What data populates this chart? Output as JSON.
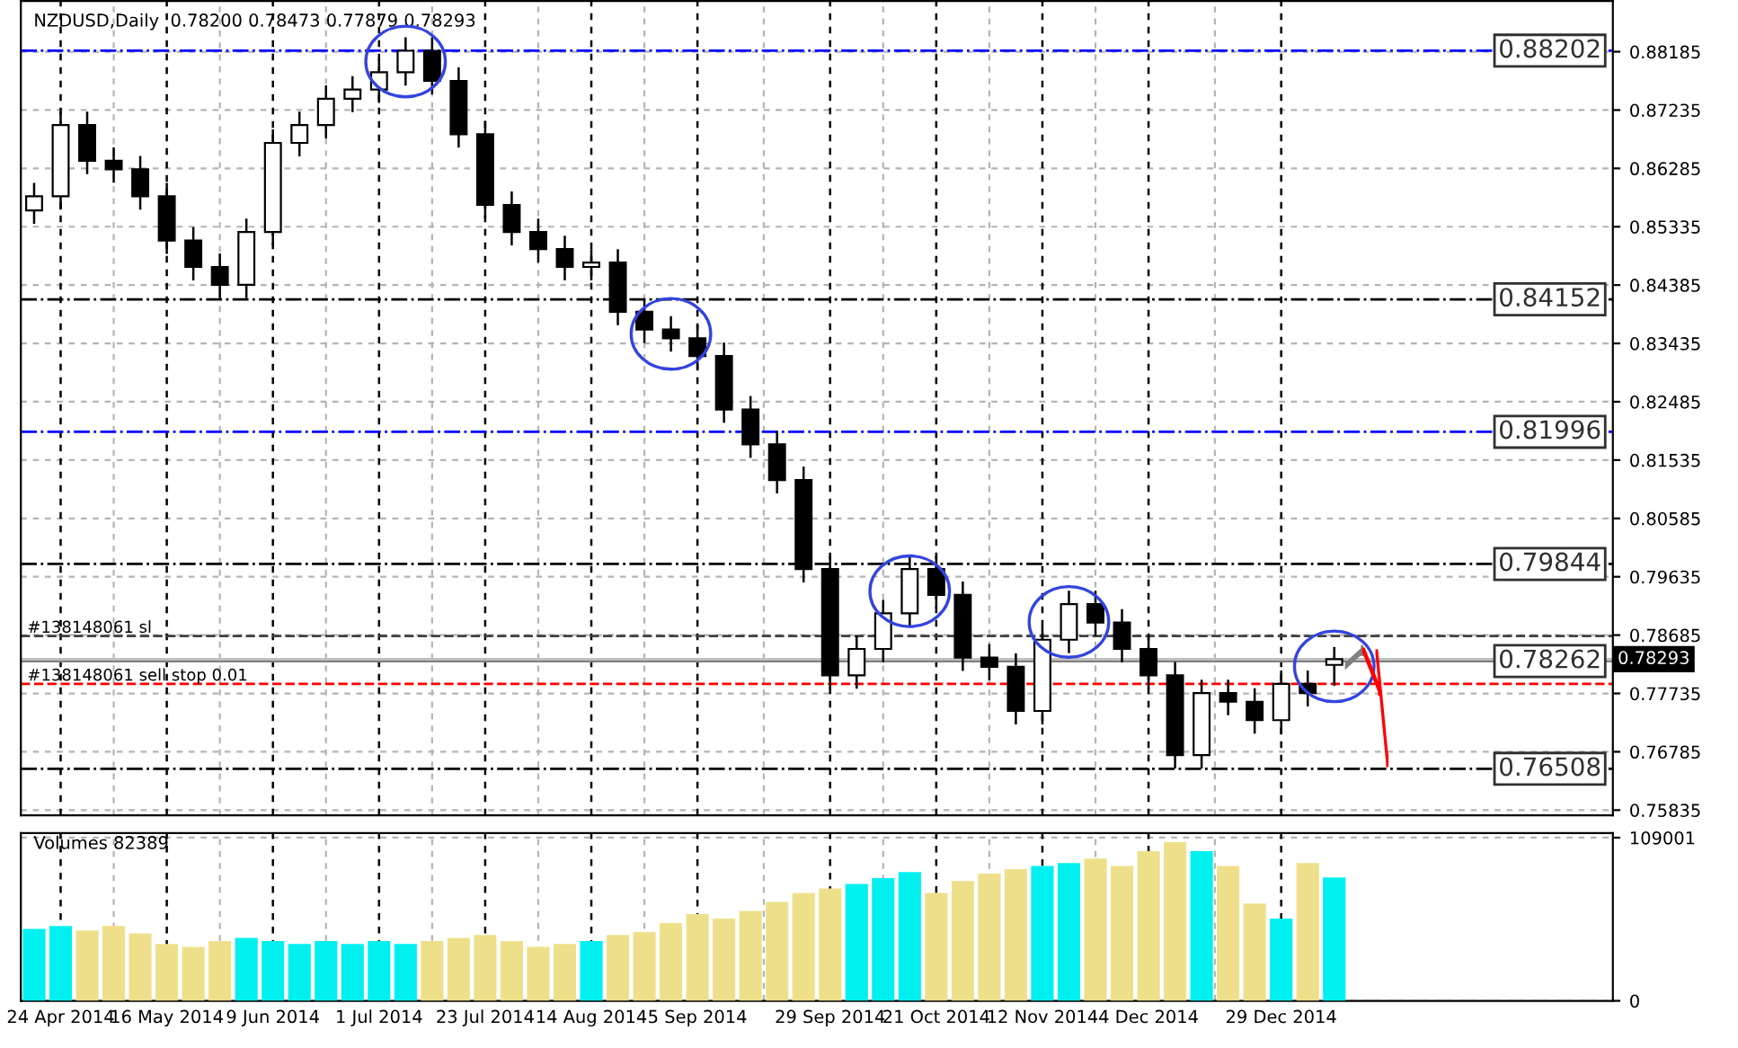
{
  "chart_data": [
    {
      "type": "candlestick",
      "title": "NZDUSD,Daily  0.78200 0.78473 0.77879 0.78293",
      "categories": [
        null,
        null,
        null,
        null,
        null,
        null,
        null,
        null,
        null,
        null,
        null,
        null,
        null,
        null,
        null,
        null,
        null,
        null,
        null,
        null,
        null,
        null,
        null,
        null,
        null,
        null,
        null,
        null,
        null,
        null,
        null,
        null,
        null,
        null,
        null,
        null,
        null,
        null,
        null,
        null,
        null,
        null,
        null,
        null,
        null,
        null,
        null,
        null,
        null,
        null,
        null,
        null,
        null,
        null,
        null,
        null,
        null,
        null,
        null,
        null
      ],
      "ohlc": [
        [
          0.856,
          0.8603,
          0.854,
          0.8583
        ],
        [
          0.8583,
          0.8719,
          0.8563,
          0.8699
        ],
        [
          0.8699,
          0.8719,
          0.8621,
          0.8641
        ],
        [
          0.8641,
          0.8661,
          0.8607,
          0.8627
        ],
        [
          0.8627,
          0.8647,
          0.8563,
          0.8583
        ],
        [
          0.8583,
          0.8603,
          0.8491,
          0.8511
        ],
        [
          0.8511,
          0.8531,
          0.8448,
          0.8468
        ],
        [
          0.8468,
          0.8488,
          0.8419,
          0.8439
        ],
        [
          0.8439,
          0.8545,
          0.8419,
          0.8525
        ],
        [
          0.8525,
          0.869,
          0.8505,
          0.867
        ],
        [
          0.867,
          0.8719,
          0.865,
          0.8699
        ],
        [
          0.8699,
          0.8762,
          0.8679,
          0.8742
        ],
        [
          0.8742,
          0.8777,
          0.8722,
          0.8757
        ],
        [
          0.8757,
          0.8805,
          0.8737,
          0.8785
        ],
        [
          0.8785,
          0.884,
          0.8765,
          0.882
        ],
        [
          0.882,
          0.884,
          0.8751,
          0.8771
        ],
        [
          0.8771,
          0.8791,
          0.8664,
          0.8684
        ],
        [
          0.8684,
          0.8704,
          0.8549,
          0.8569
        ],
        [
          0.8569,
          0.8589,
          0.8505,
          0.8525
        ],
        [
          0.8525,
          0.8545,
          0.8477,
          0.8497
        ],
        [
          0.8497,
          0.8517,
          0.8448,
          0.8468
        ],
        [
          0.8468,
          0.8495,
          0.8448,
          0.8475
        ],
        [
          0.8475,
          0.8495,
          0.8375,
          0.8395
        ],
        [
          0.8395,
          0.8415,
          0.8346,
          0.8366
        ],
        [
          0.8366,
          0.8386,
          0.8332,
          0.8352
        ],
        [
          0.8352,
          0.8372,
          0.8303,
          0.8323
        ],
        [
          0.8323,
          0.8343,
          0.8216,
          0.8236
        ],
        [
          0.8236,
          0.8256,
          0.8159,
          0.8179
        ],
        [
          0.8179,
          0.8199,
          0.8101,
          0.8121
        ],
        [
          0.8121,
          0.8141,
          0.7956,
          0.7976
        ],
        [
          0.7976,
          0.7996,
          0.7783,
          0.7803
        ],
        [
          0.7803,
          0.7866,
          0.7783,
          0.7846
        ],
        [
          0.7846,
          0.7924,
          0.7826,
          0.7904
        ],
        [
          0.7904,
          0.7996,
          0.7884,
          0.7976
        ],
        [
          0.7976,
          0.7996,
          0.7914,
          0.7934
        ],
        [
          0.7934,
          0.7954,
          0.7812,
          0.7832
        ],
        [
          0.7832,
          0.7852,
          0.7797,
          0.7817
        ],
        [
          0.7817,
          0.7837,
          0.7725,
          0.7745
        ],
        [
          0.7745,
          0.7881,
          0.7725,
          0.7861
        ],
        [
          0.7861,
          0.7939,
          0.7841,
          0.7919
        ],
        [
          0.7919,
          0.7939,
          0.7869,
          0.7889
        ],
        [
          0.7889,
          0.7909,
          0.7826,
          0.7846
        ],
        [
          0.7846,
          0.7866,
          0.7783,
          0.7803
        ],
        [
          0.7803,
          0.7823,
          0.7653,
          0.7673
        ],
        [
          0.7673,
          0.7794,
          0.7653,
          0.7774
        ],
        [
          0.7774,
          0.7794,
          0.774,
          0.776
        ],
        [
          0.776,
          0.778,
          0.771,
          0.773
        ],
        [
          0.773,
          0.7809,
          0.771,
          0.7789
        ],
        [
          0.7789,
          0.7809,
          0.7754,
          0.7774
        ],
        [
          0.782,
          0.78473,
          0.77879,
          0.78293
        ],
        null,
        null,
        null,
        null,
        null,
        null,
        null,
        null,
        null,
        null
      ],
      "ylim": [
        0.7575,
        0.8901
      ],
      "yticks": [
        0.88185,
        0.87235,
        0.86285,
        0.85335,
        0.84385,
        0.83435,
        0.82485,
        0.81535,
        0.80585,
        0.79635,
        0.78685,
        0.77735,
        0.76785,
        0.75835
      ],
      "grid": true,
      "ref_lines": [
        {
          "axis": "y",
          "value": 0.88202,
          "label": "0.88202",
          "color": "#0000ff",
          "line_style": "dashdot"
        },
        {
          "axis": "y",
          "value": 0.84152,
          "label": "0.84152",
          "color": "#000000",
          "line_style": "dashdot"
        },
        {
          "axis": "y",
          "value": 0.81996,
          "label": "0.81996",
          "color": "#0000ff",
          "line_style": "dashdot"
        },
        {
          "axis": "y",
          "value": 0.79844,
          "label": "0.79844",
          "color": "#000000",
          "line_style": "dashdot"
        },
        {
          "axis": "y",
          "value": 0.78262,
          "label": "0.78262",
          "color": "#808080",
          "line_style": "solid"
        },
        {
          "axis": "y",
          "value": 0.76508,
          "label": "0.76508",
          "color": "#000000",
          "line_style": "dashdot"
        },
        {
          "axis": "y",
          "value": 0.7867,
          "label": "#138148061 sl",
          "color": "#404040",
          "line_style": "dashed"
        },
        {
          "axis": "y",
          "value": 0.7789,
          "label": "#138148061 sell stop 0.01",
          "color": "#ff0000",
          "line_style": "dashed"
        },
        {
          "axis": "y",
          "value": 0.78293,
          "label": "0.78293",
          "color": "#c0c0c0",
          "line_style": "solid"
        }
      ]
    },
    {
      "type": "bar",
      "title": "Volumes 82389",
      "categories": [
        null,
        "24 Apr 2014",
        null,
        null,
        null,
        "16 May 2014",
        null,
        null,
        null,
        "9 Jun 2014",
        null,
        null,
        null,
        "1 Jul 2014",
        null,
        null,
        null,
        "23 Jul 2014",
        null,
        null,
        null,
        "14 Aug 2014",
        null,
        null,
        null,
        "5 Sep 2014",
        null,
        null,
        null,
        null,
        "29 Sep 2014",
        null,
        null,
        null,
        "21 Oct 2014",
        null,
        null,
        null,
        "12 Nov 2014",
        null,
        null,
        null,
        "4 Dec 2014",
        null,
        null,
        null,
        null,
        "29 Dec 2014",
        null,
        null,
        null,
        null,
        null,
        null,
        null,
        null,
        null,
        null,
        null,
        null
      ],
      "values": [
        48000,
        50000,
        47000,
        50000,
        45000,
        38000,
        36000,
        40000,
        42000,
        40000,
        38000,
        40000,
        38000,
        40000,
        38000,
        40000,
        42000,
        44000,
        40000,
        36000,
        38000,
        40000,
        44000,
        46000,
        52000,
        58000,
        55000,
        60000,
        66000,
        72000,
        75000,
        78000,
        82000,
        86000,
        72000,
        80000,
        85000,
        88000,
        90000,
        92000,
        95000,
        90000,
        100000,
        106000,
        100000,
        90000,
        65000,
        55000,
        92000,
        82389,
        null,
        null,
        null,
        null,
        null,
        null,
        null,
        null,
        null,
        null
      ],
      "colors": [
        "#00f0f0",
        "#00f0f0",
        "#eee08a",
        "#eee08a",
        "#eee08a",
        "#eee08a",
        "#eee08a",
        "#eee08a",
        "#00f0f0",
        "#00f0f0",
        "#00f0f0",
        "#00f0f0",
        "#00f0f0",
        "#00f0f0",
        "#00f0f0",
        "#eee08a",
        "#eee08a",
        "#eee08a",
        "#eee08a",
        "#eee08a",
        "#eee08a",
        "#00f0f0",
        "#eee08a",
        "#eee08a",
        "#eee08a",
        "#eee08a",
        "#eee08a",
        "#eee08a",
        "#eee08a",
        "#eee08a",
        "#eee08a",
        "#00f0f0",
        "#00f0f0",
        "#00f0f0",
        "#eee08a",
        "#eee08a",
        "#eee08a",
        "#eee08a",
        "#00f0f0",
        "#00f0f0",
        "#eee08a",
        "#eee08a",
        "#eee08a",
        "#eee08a",
        "#00f0f0",
        "#eee08a",
        "#eee08a",
        "#00f0f0",
        "#eee08a",
        "#00f0f0",
        null,
        null,
        null,
        null,
        null,
        null,
        null,
        null,
        null,
        null
      ],
      "ylim": [
        0,
        112000
      ],
      "yticks": [
        109001,
        0
      ],
      "grid": true
    }
  ]
}
